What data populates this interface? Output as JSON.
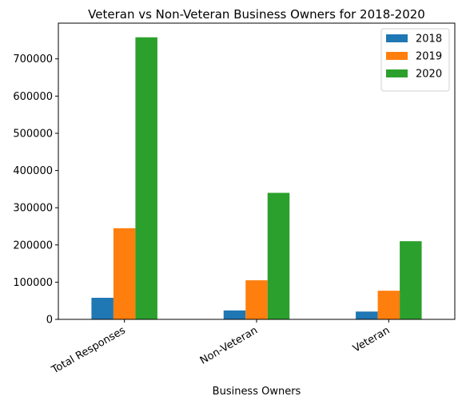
{
  "chart_data": {
    "type": "bar",
    "title": "Veteran vs Non-Veteran Business Owners for 2018-2020",
    "xlabel": "Business Owners",
    "ylabel": "",
    "categories": [
      "Total Responses",
      "Non-Veteran",
      "Veteran"
    ],
    "series": [
      {
        "name": "2018",
        "color": "#1f77b4",
        "values": [
          58000,
          24000,
          21000
        ]
      },
      {
        "name": "2019",
        "color": "#ff7f0e",
        "values": [
          245000,
          105000,
          77000
        ]
      },
      {
        "name": "2020",
        "color": "#2ca02c",
        "values": [
          758000,
          340000,
          210000
        ]
      }
    ],
    "ylim": [
      0,
      796000
    ],
    "yticks": [
      0,
      100000,
      200000,
      300000,
      400000,
      500000,
      600000,
      700000
    ],
    "ytick_labels": [
      "0",
      "100000",
      "200000",
      "300000",
      "400000",
      "500000",
      "600000",
      "700000"
    ],
    "grid": false,
    "legend_position": "top-right"
  }
}
